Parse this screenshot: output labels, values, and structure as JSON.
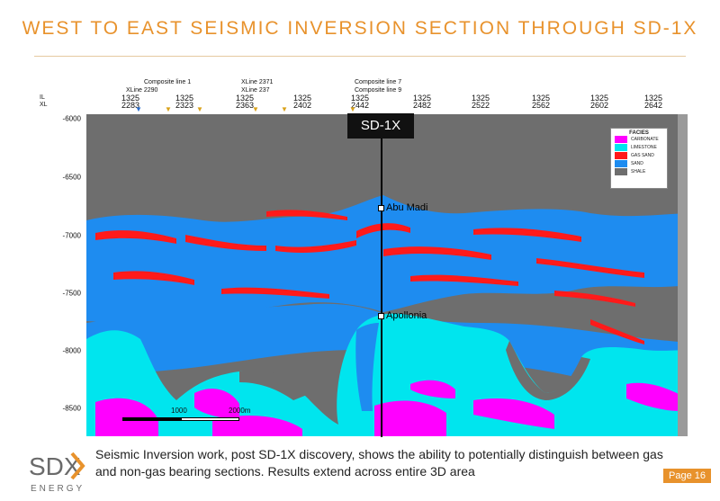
{
  "title": "WEST TO EAST SEISMIC INVERSION SECTION THROUGH SD-1X",
  "header": {
    "row_il": "IL",
    "row_xl": "XL",
    "composite_line_1": "Composite line 1",
    "xline_2290": "XLine 2290",
    "xline_2371": "XLine 2371",
    "xline_237": "XLine 237",
    "composite_line_7": "Composite line 7",
    "composite_line_9": "Composite line 9",
    "il_values": [
      "1325",
      "1325",
      "1325",
      "1325",
      "1325",
      "1325",
      "1325",
      "1325",
      "1325",
      "1325"
    ],
    "xl_values": [
      "2283",
      "2323",
      "2363",
      "2402",
      "2442",
      "2482",
      "2522",
      "2562",
      "2602",
      "2642"
    ]
  },
  "depth_axis": [
    "-6000",
    "-6500",
    "-7000",
    "-7500",
    "-8000",
    "-8500"
  ],
  "well": {
    "name": "SD-1X"
  },
  "horizons": {
    "top": "Abu Madi",
    "bottom": "Apollonia"
  },
  "legend": {
    "title": "FACIES",
    "items": [
      {
        "label": "CARBONATE",
        "color": "#ff00ff"
      },
      {
        "label": "LIMESTONE",
        "color": "#00e5ee"
      },
      {
        "label": "GAS SAND",
        "color": "#ff1a1a"
      },
      {
        "label": "SAND",
        "color": "#1e8cf0"
      },
      {
        "label": "SHALE",
        "color": "#6e6e6e"
      }
    ]
  },
  "scale_bar": {
    "mid": "1000",
    "end": "2000m"
  },
  "caption": "Seismic Inversion work, post SD-1X discovery, shows the ability to potentially distinguish between gas and non-gas bearing sections.  Results extend across entire 3D area",
  "logo": {
    "mark": "SDX",
    "sub": "ENERGY"
  },
  "page": "Page 16",
  "colors": {
    "accent": "#e8922c",
    "shale": "#6e6e6e",
    "sand": "#1e8cf0",
    "gas": "#ff1a1a",
    "limestone": "#00e5ee",
    "carbonate": "#ff00ff"
  }
}
